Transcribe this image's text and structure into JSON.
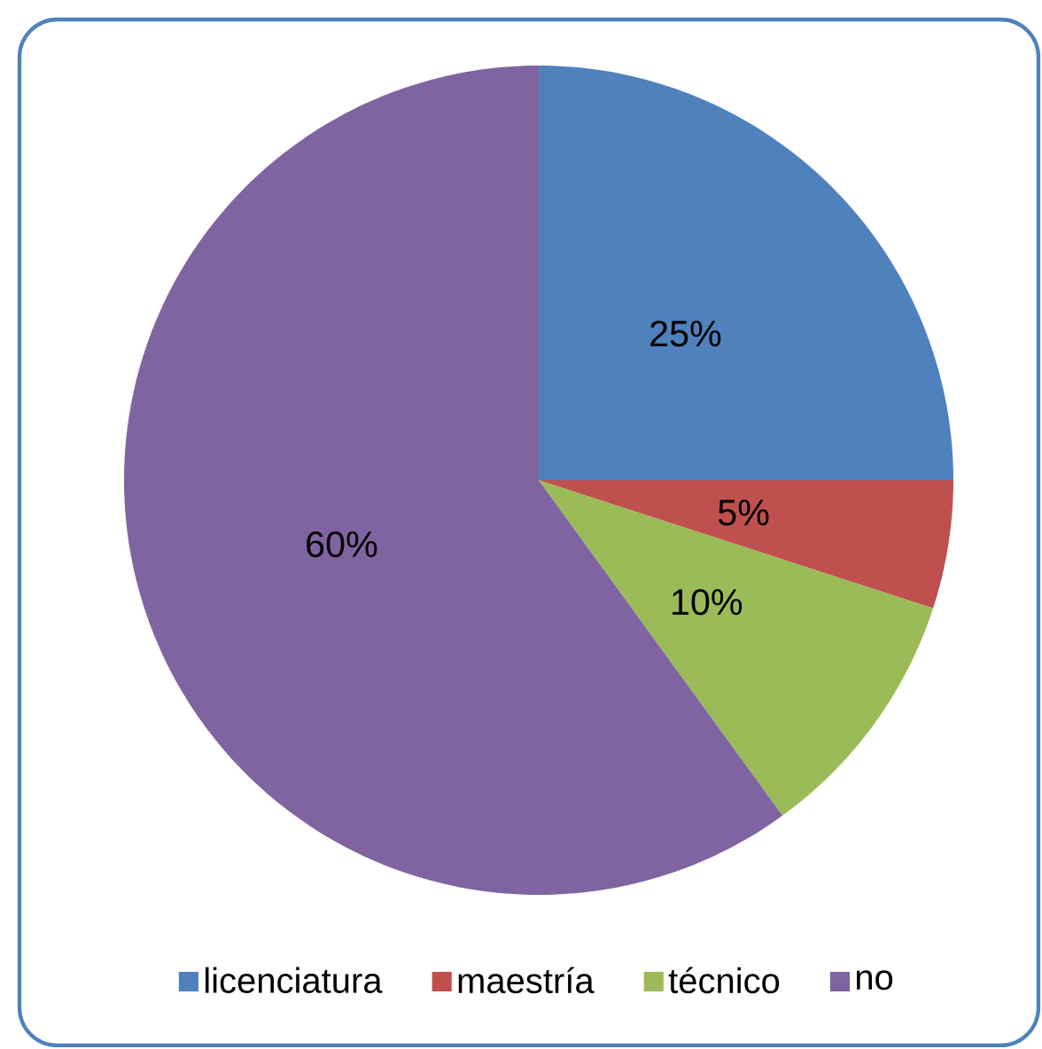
{
  "chart_data": {
    "type": "pie",
    "categories": [
      "licenciatura",
      "maestría",
      "técnico",
      "no"
    ],
    "values": [
      25,
      5,
      10,
      60
    ],
    "colors": [
      "#4f81bd",
      "#c0504d",
      "#9bbb59",
      "#8064a2"
    ],
    "value_labels": [
      "25%",
      "5%",
      "10%",
      "60%"
    ],
    "legend": "bottom"
  }
}
